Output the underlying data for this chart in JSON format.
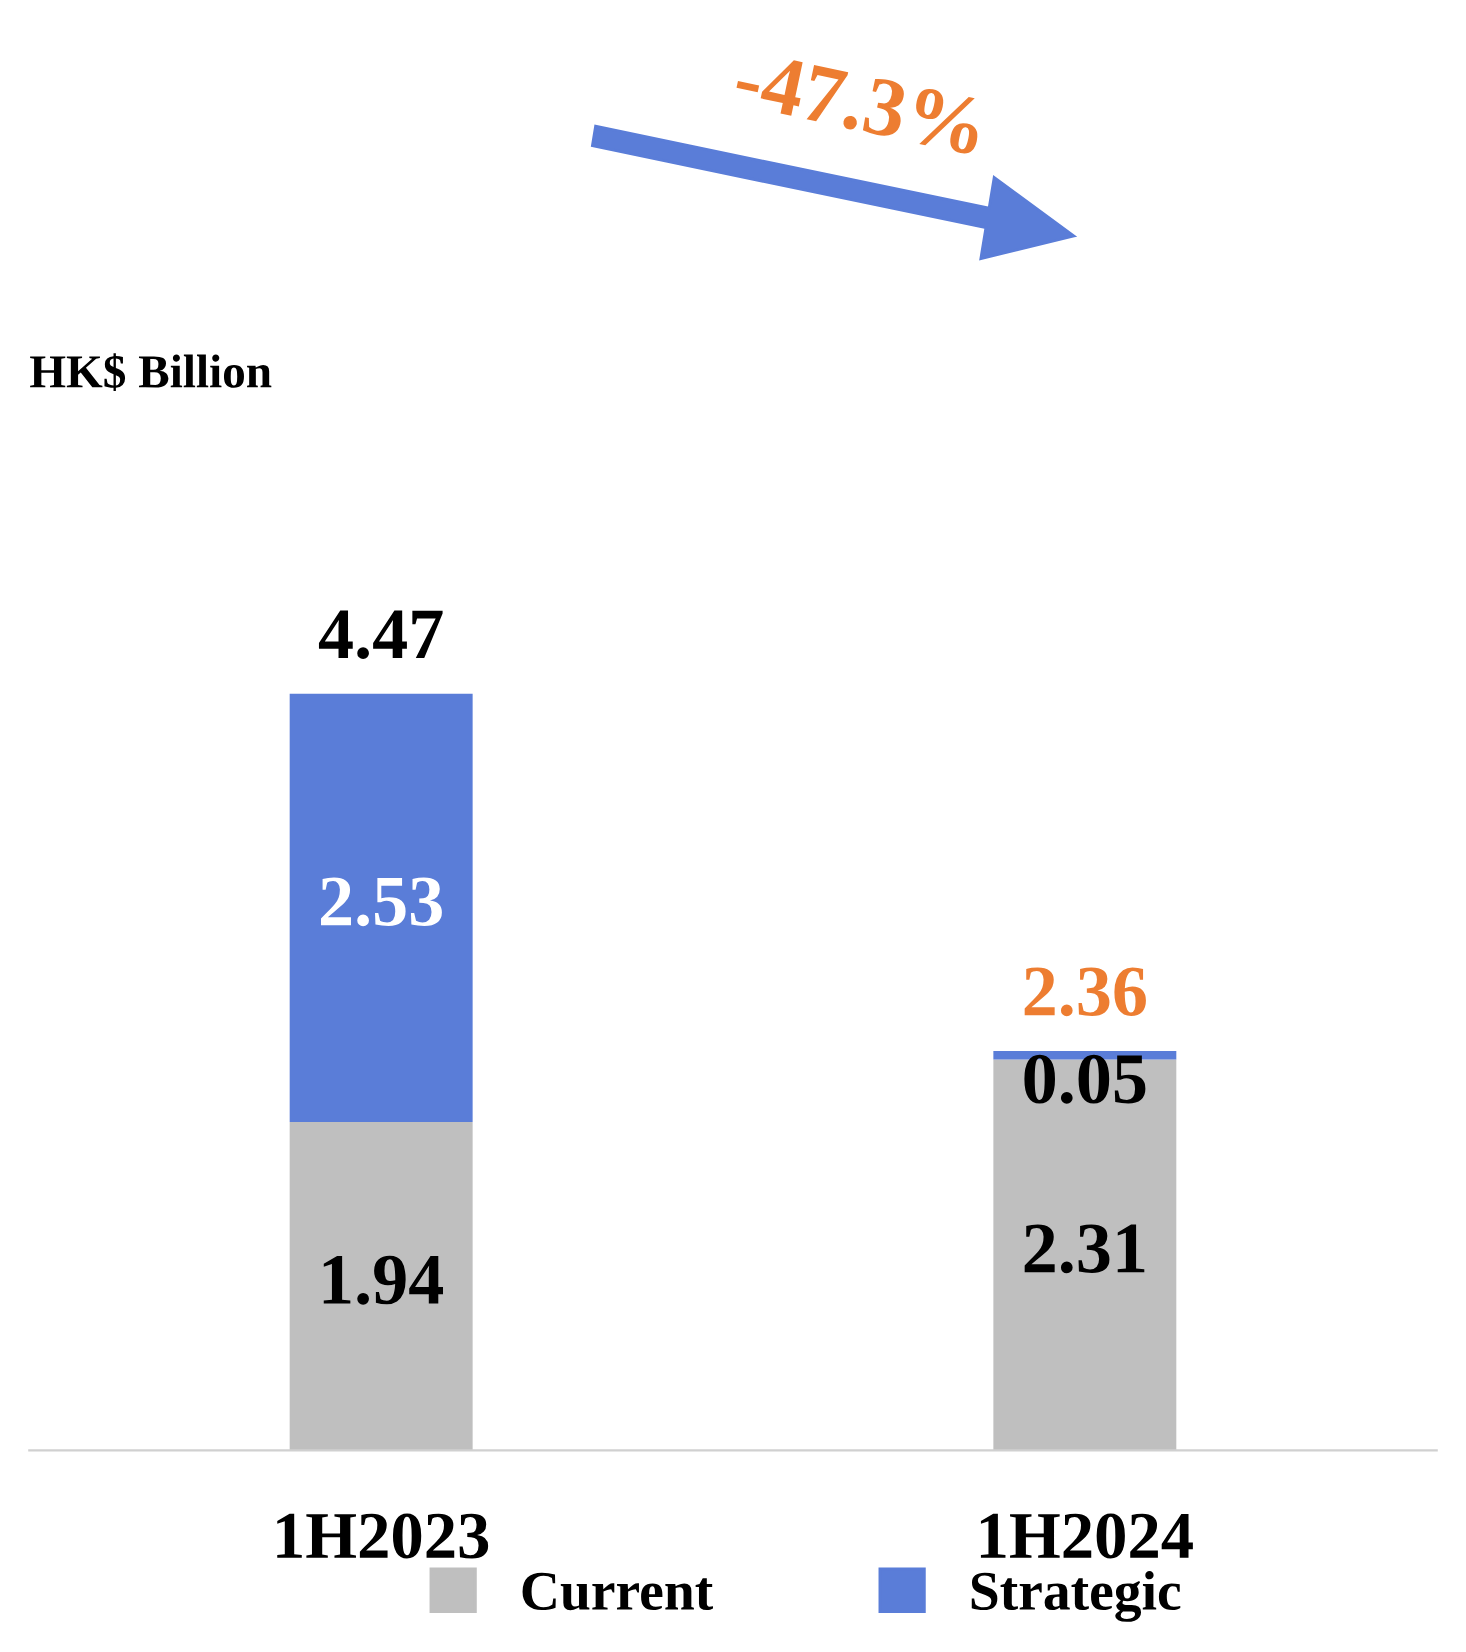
{
  "chart_data": {
    "type": "bar",
    "stacked": true,
    "categories": [
      "1H2023",
      "1H2024"
    ],
    "series": [
      {
        "name": "Current",
        "color": "#bfbfbf",
        "values": [
          1.94,
          2.31
        ]
      },
      {
        "name": "Strategic",
        "color": "#5a7dd8",
        "values": [
          2.53,
          0.05
        ]
      }
    ],
    "data_labels": true,
    "totals": [
      "4.47",
      "2.36"
    ],
    "annotations": [
      "-47.3%",
      "HK$ Billion"
    ],
    "legend": "bottom",
    "grid": false
  }
}
